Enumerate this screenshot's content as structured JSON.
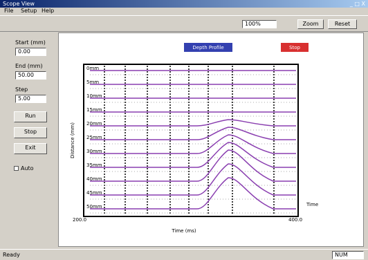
{
  "window": {
    "title": "Scope View",
    "controls": "_ □ X"
  },
  "menu": [
    "File",
    "Setup",
    "Help"
  ],
  "toolbar": {
    "zoom_select": "100%",
    "buttons": [
      "Zoom",
      "Reset"
    ]
  },
  "left_panel": {
    "fields": [
      {
        "label": "Start (mm)",
        "value": "0.00"
      },
      {
        "label": "End (mm)",
        "value": "50.00"
      },
      {
        "label": "Step",
        "value": "5.00"
      }
    ],
    "buttons": [
      "Run",
      "Stop",
      "Exit"
    ],
    "checkbox": "Auto"
  },
  "plot": {
    "header": "Depth Profile",
    "status_tag": "Stop",
    "row_labels": [
      "0mm",
      "5mm",
      "10mm",
      "15mm",
      "20mm",
      "25mm",
      "30mm",
      "35mm",
      "40mm",
      "45mm",
      "50mm"
    ],
    "x_start": "200.0",
    "x_end": "400.0",
    "x_label": "Time (ms)",
    "y_label": "Distance (mm)",
    "note": "Time"
  },
  "status_bar": {
    "left": "Ready",
    "right": "NUM"
  }
}
